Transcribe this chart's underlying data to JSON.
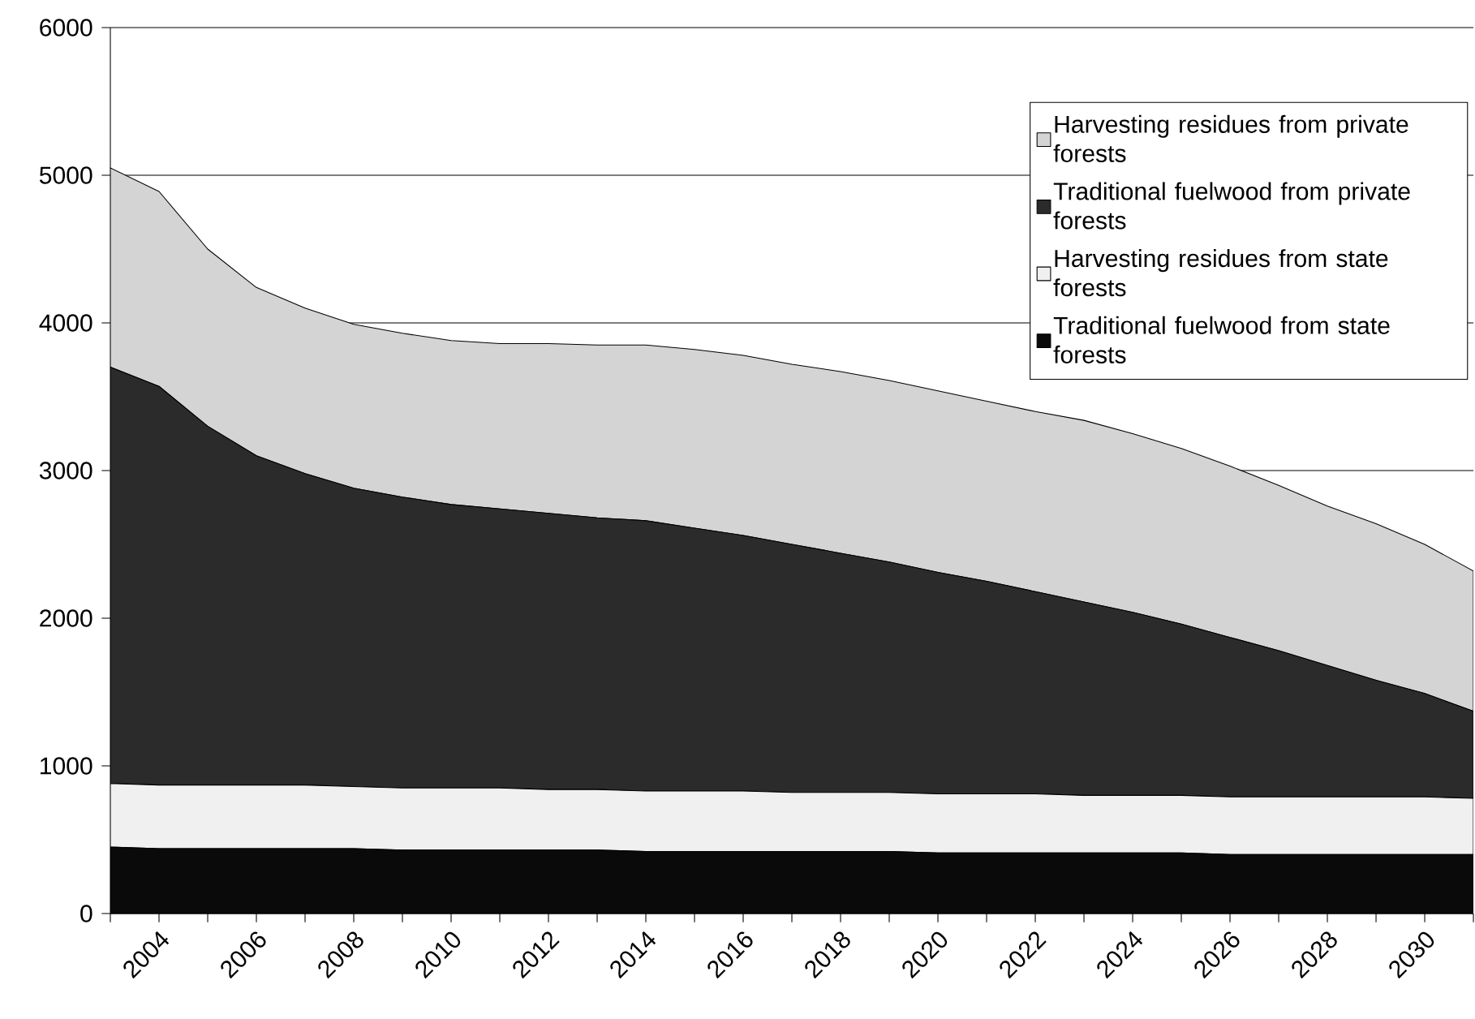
{
  "chart_data": {
    "type": "area",
    "stacked": true,
    "grid": "y",
    "legend": "top right",
    "categories": [
      null,
      "2004",
      null,
      "2006",
      null,
      "2008",
      null,
      "2010",
      null,
      "2012",
      null,
      "2014",
      null,
      "2016",
      null,
      "2018",
      null,
      "2020",
      null,
      "2022",
      null,
      "2024",
      null,
      "2026",
      null,
      "2028",
      null,
      "2030",
      null
    ],
    "ylim": [
      0,
      6000
    ],
    "yticks": [
      0,
      1000,
      2000,
      3000,
      4000,
      5000,
      6000
    ],
    "series": [
      {
        "name": "Traditional fuelwood from state forests",
        "color": "#0a0a0a",
        "values": [
          450,
          440,
          440,
          440,
          440,
          440,
          430,
          430,
          430,
          430,
          430,
          420,
          420,
          420,
          420,
          420,
          420,
          410,
          410,
          410,
          410,
          410,
          410,
          400,
          400,
          400,
          400,
          400,
          400
        ]
      },
      {
        "name": "Harvesting residues from state forests",
        "color": "#f0f0f0",
        "values": [
          430,
          430,
          430,
          430,
          430,
          420,
          420,
          420,
          420,
          410,
          410,
          410,
          410,
          410,
          400,
          400,
          400,
          400,
          400,
          400,
          390,
          390,
          390,
          390,
          390,
          390,
          390,
          390,
          380
        ]
      },
      {
        "name": "Traditional fuelwood from private forests",
        "color": "#2b2b2b",
        "values": [
          2820,
          2700,
          2430,
          2230,
          2110,
          2020,
          1970,
          1920,
          1890,
          1870,
          1840,
          1830,
          1780,
          1730,
          1680,
          1620,
          1560,
          1500,
          1440,
          1370,
          1310,
          1240,
          1160,
          1080,
          990,
          890,
          790,
          700,
          590
        ]
      },
      {
        "name": "Harvesting residues from private forests",
        "color": "#d4d4d4",
        "values": [
          1350,
          1320,
          1200,
          1140,
          1120,
          1110,
          1110,
          1110,
          1120,
          1150,
          1170,
          1190,
          1210,
          1220,
          1220,
          1230,
          1230,
          1230,
          1220,
          1220,
          1230,
          1210,
          1190,
          1160,
          1120,
          1080,
          1060,
          1010,
          950
        ]
      }
    ]
  }
}
